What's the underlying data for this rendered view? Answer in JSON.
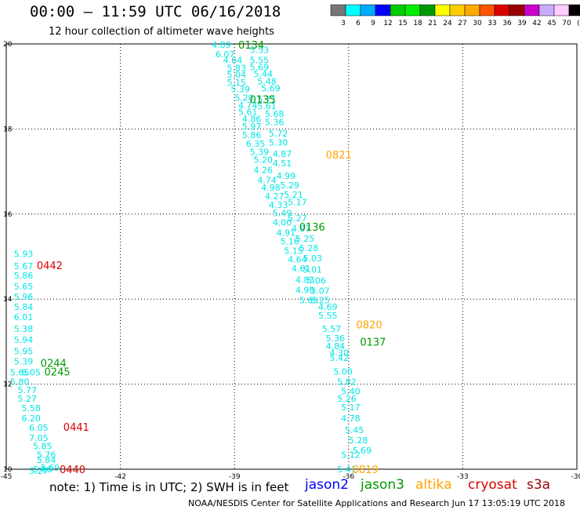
{
  "header": {
    "title": "00:00 – 11:59 UTC 06/16/2018",
    "subtitle": "12 hour collection of altimeter wave heights"
  },
  "colorbar": {
    "labels": [
      "3",
      "6",
      "9",
      "12",
      "15",
      "18",
      "21",
      "24",
      "27",
      "30",
      "33",
      "36",
      "39",
      "42",
      "45",
      "70",
      "(ft)"
    ],
    "colors": [
      "#777777",
      "#00ffff",
      "#00aaff",
      "#0000ff",
      "#00cc00",
      "#00ee00",
      "#009900",
      "#ffff00",
      "#ffcc00",
      "#ffaa00",
      "#ff5500",
      "#dd0000",
      "#990000",
      "#cc00cc",
      "#ccaaff",
      "#ffccff",
      "#000000"
    ]
  },
  "footer": {
    "note": "note: 1) Time is in UTC; 2) SWH is in feet",
    "satellites": [
      {
        "name": "jason2",
        "color": "#0000ff"
      },
      {
        "name": "jason3",
        "color": "#009900"
      },
      {
        "name": "altika",
        "color": "#ffa500"
      },
      {
        "name": "cryosat",
        "color": "#dd0000"
      },
      {
        "name": "s3a",
        "color": "#990000"
      }
    ],
    "credit": "NOAA/NESDIS Center for Satellite Applications and Research   Jun 17 13:05:19 UTC 2018"
  },
  "chart_data": {
    "type": "scatter",
    "title": "00:00 – 11:59 UTC 06/16/2018",
    "subtitle": "12 hour collection of altimeter wave heights",
    "xlim": [
      -45,
      -30
    ],
    "ylim": [
      10,
      20
    ],
    "x_ticks": [
      "-45",
      "-42",
      "-39",
      "-36",
      "-33",
      "-30"
    ],
    "y_ticks": [
      "10",
      "12",
      "14",
      "16",
      "18",
      "20"
    ],
    "grid": true,
    "unit": "ft",
    "track_labels": [
      {
        "text": "0134",
        "x": -38.9,
        "y": 19.98,
        "color": "#009900"
      },
      {
        "text": "0135",
        "x": -38.6,
        "y": 18.7,
        "color": "#009900"
      },
      {
        "text": "0136",
        "x": -37.3,
        "y": 15.7,
        "color": "#009900"
      },
      {
        "text": "0137",
        "x": -35.7,
        "y": 13.0,
        "color": "#009900"
      },
      {
        "text": "0244",
        "x": -44.1,
        "y": 12.5,
        "color": "#009900"
      },
      {
        "text": "0245",
        "x": -44.0,
        "y": 12.3,
        "color": "#009900"
      },
      {
        "text": "0821",
        "x": -36.6,
        "y": 17.4,
        "color": "#ffa500"
      },
      {
        "text": "0820",
        "x": -35.8,
        "y": 13.4,
        "color": "#ffa500"
      },
      {
        "text": "0819",
        "x": -35.9,
        "y": 10.0,
        "color": "#ffa500"
      },
      {
        "text": "0442",
        "x": -44.2,
        "y": 14.8,
        "color": "#dd0000"
      },
      {
        "text": "0441",
        "x": -43.5,
        "y": 11.0,
        "color": "#dd0000"
      },
      {
        "text": "0440",
        "x": -43.6,
        "y": 10.0,
        "color": "#dd0000"
      }
    ],
    "series": [
      {
        "color": "#00e5e5",
        "points": [
          {
            "x": -39.6,
            "y": 19.98,
            "v": "4.89"
          },
          {
            "x": -38.6,
            "y": 19.86,
            "v": "5.53"
          },
          {
            "x": -39.5,
            "y": 19.76,
            "v": "6.07"
          },
          {
            "x": -38.6,
            "y": 19.62,
            "v": "5.55"
          },
          {
            "x": -39.3,
            "y": 19.62,
            "v": "4.64"
          },
          {
            "x": -38.6,
            "y": 19.46,
            "v": "5.69"
          },
          {
            "x": -39.2,
            "y": 19.44,
            "v": "5.83"
          },
          {
            "x": -38.5,
            "y": 19.3,
            "v": "5.44"
          },
          {
            "x": -39.2,
            "y": 19.28,
            "v": "5.04"
          },
          {
            "x": -38.4,
            "y": 19.12,
            "v": "5.48"
          },
          {
            "x": -39.2,
            "y": 19.1,
            "v": "5.15"
          },
          {
            "x": -38.3,
            "y": 18.96,
            "v": "5.69"
          },
          {
            "x": -39.1,
            "y": 18.94,
            "v": "5.39"
          },
          {
            "x": -38.4,
            "y": 18.7,
            "v": "5.71"
          },
          {
            "x": -39.0,
            "y": 18.74,
            "v": "5.20"
          },
          {
            "x": -38.4,
            "y": 18.54,
            "v": "5.61"
          },
          {
            "x": -38.9,
            "y": 18.56,
            "v": "4.74"
          },
          {
            "x": -38.2,
            "y": 18.36,
            "v": "5.68"
          },
          {
            "x": -38.9,
            "y": 18.4,
            "v": "5.61"
          },
          {
            "x": -38.2,
            "y": 18.16,
            "v": "5.36"
          },
          {
            "x": -38.8,
            "y": 18.24,
            "v": "4.86"
          },
          {
            "x": -38.1,
            "y": 17.9,
            "v": "5.72"
          },
          {
            "x": -38.8,
            "y": 18.06,
            "v": "5.97"
          },
          {
            "x": -38.1,
            "y": 17.68,
            "v": "5.30"
          },
          {
            "x": -38.8,
            "y": 17.86,
            "v": "5.86"
          },
          {
            "x": -38.0,
            "y": 17.42,
            "v": "4.87"
          },
          {
            "x": -38.7,
            "y": 17.66,
            "v": "6.35"
          },
          {
            "x": -38.0,
            "y": 17.2,
            "v": "4.51"
          },
          {
            "x": -38.6,
            "y": 17.46,
            "v": "5.39"
          },
          {
            "x": -37.9,
            "y": 16.9,
            "v": "4.99"
          },
          {
            "x": -38.5,
            "y": 17.28,
            "v": "5.20"
          },
          {
            "x": -37.8,
            "y": 16.68,
            "v": "5.29"
          },
          {
            "x": -38.5,
            "y": 17.04,
            "v": "4.26"
          },
          {
            "x": -37.7,
            "y": 16.46,
            "v": "5.21"
          },
          {
            "x": -38.4,
            "y": 16.8,
            "v": "4.74"
          },
          {
            "x": -37.6,
            "y": 16.28,
            "v": "5.17"
          },
          {
            "x": -38.3,
            "y": 16.62,
            "v": "4.98"
          },
          {
            "x": -37.6,
            "y": 15.9,
            "v": "5.27"
          },
          {
            "x": -38.2,
            "y": 16.42,
            "v": "4.27"
          },
          {
            "x": -37.5,
            "y": 15.66,
            "v": "4.97"
          },
          {
            "x": -38.1,
            "y": 16.22,
            "v": "4.33"
          },
          {
            "x": -37.4,
            "y": 15.42,
            "v": "5.25"
          },
          {
            "x": -38.0,
            "y": 16.02,
            "v": "5.49"
          },
          {
            "x": -37.3,
            "y": 15.2,
            "v": "5.28"
          },
          {
            "x": -38.0,
            "y": 15.8,
            "v": "4.00"
          },
          {
            "x": -37.2,
            "y": 14.96,
            "v": "5.03"
          },
          {
            "x": -37.9,
            "y": 15.56,
            "v": "4.91"
          },
          {
            "x": -37.2,
            "y": 14.7,
            "v": "5.01"
          },
          {
            "x": -37.8,
            "y": 15.36,
            "v": "5.16"
          },
          {
            "x": -37.1,
            "y": 14.44,
            "v": "5.06"
          },
          {
            "x": -37.7,
            "y": 15.14,
            "v": "5.15"
          },
          {
            "x": -37.0,
            "y": 14.2,
            "v": "5.07"
          },
          {
            "x": -37.6,
            "y": 14.94,
            "v": "4.64"
          },
          {
            "x": -37.0,
            "y": 13.98,
            "v": "5.25"
          },
          {
            "x": -37.5,
            "y": 14.72,
            "v": "4.61"
          },
          {
            "x": -36.8,
            "y": 13.82,
            "v": "4.69"
          },
          {
            "x": -37.4,
            "y": 14.46,
            "v": "4.83"
          },
          {
            "x": -36.8,
            "y": 13.62,
            "v": "5.55"
          },
          {
            "x": -37.4,
            "y": 14.22,
            "v": "4.90"
          },
          {
            "x": -36.7,
            "y": 13.3,
            "v": "5.57"
          },
          {
            "x": -37.3,
            "y": 13.98,
            "v": "5.65"
          },
          {
            "x": -36.6,
            "y": 13.08,
            "v": "5.36"
          },
          {
            "x": -36.6,
            "y": 12.9,
            "v": "4.84"
          },
          {
            "x": -36.5,
            "y": 12.62,
            "v": "5.42"
          },
          {
            "x": -36.5,
            "y": 12.74,
            "v": "4.30"
          },
          {
            "x": -36.4,
            "y": 12.3,
            "v": "5.00"
          },
          {
            "x": -36.3,
            "y": 12.06,
            "v": "5.82"
          },
          {
            "x": -36.2,
            "y": 11.84,
            "v": "5.40"
          },
          {
            "x": -36.3,
            "y": 11.66,
            "v": "5.26"
          },
          {
            "x": -36.2,
            "y": 11.46,
            "v": "5.17"
          },
          {
            "x": -36.2,
            "y": 11.2,
            "v": "4.78"
          },
          {
            "x": -36.1,
            "y": 10.92,
            "v": "5.45"
          },
          {
            "x": -36.0,
            "y": 10.68,
            "v": "5.28"
          },
          {
            "x": -35.9,
            "y": 10.44,
            "v": "5.69"
          },
          {
            "x": -36.2,
            "y": 10.34,
            "v": "5.12"
          },
          {
            "x": -36.3,
            "y": 10.0,
            "v": "5.41"
          },
          {
            "x": -44.8,
            "y": 15.06,
            "v": "5.93"
          },
          {
            "x": -44.8,
            "y": 14.78,
            "v": "5.67"
          },
          {
            "x": -44.8,
            "y": 14.56,
            "v": "5.86"
          },
          {
            "x": -44.8,
            "y": 14.3,
            "v": "5.65"
          },
          {
            "x": -44.8,
            "y": 14.06,
            "v": "5.96"
          },
          {
            "x": -44.8,
            "y": 13.82,
            "v": "5.84"
          },
          {
            "x": -44.8,
            "y": 13.58,
            "v": "6.01"
          },
          {
            "x": -44.8,
            "y": 13.3,
            "v": "5.38"
          },
          {
            "x": -44.8,
            "y": 13.04,
            "v": "5.94"
          },
          {
            "x": -44.8,
            "y": 12.78,
            "v": "5.95"
          },
          {
            "x": -44.8,
            "y": 12.54,
            "v": "5.39"
          },
          {
            "x": -44.9,
            "y": 12.28,
            "v": "5.65"
          },
          {
            "x": -44.6,
            "y": 12.28,
            "v": "6.05"
          },
          {
            "x": -44.9,
            "y": 12.06,
            "v": "5.80"
          },
          {
            "x": -44.7,
            "y": 11.86,
            "v": "5.77"
          },
          {
            "x": -44.7,
            "y": 11.66,
            "v": "5.27"
          },
          {
            "x": -44.6,
            "y": 11.44,
            "v": "5.58"
          },
          {
            "x": -44.6,
            "y": 11.2,
            "v": "6.20"
          },
          {
            "x": -44.4,
            "y": 10.98,
            "v": "6.05"
          },
          {
            "x": -44.4,
            "y": 10.74,
            "v": "7.05"
          },
          {
            "x": -44.3,
            "y": 10.54,
            "v": "5.85"
          },
          {
            "x": -44.2,
            "y": 10.34,
            "v": "5.76"
          },
          {
            "x": -44.2,
            "y": 10.22,
            "v": "5.84"
          },
          {
            "x": -44.1,
            "y": 10.04,
            "v": "5.69"
          },
          {
            "x": -44.3,
            "y": 10.0,
            "v": "5.66"
          },
          {
            "x": -44.4,
            "y": 9.96,
            "v": "5.27"
          }
        ]
      }
    ]
  }
}
